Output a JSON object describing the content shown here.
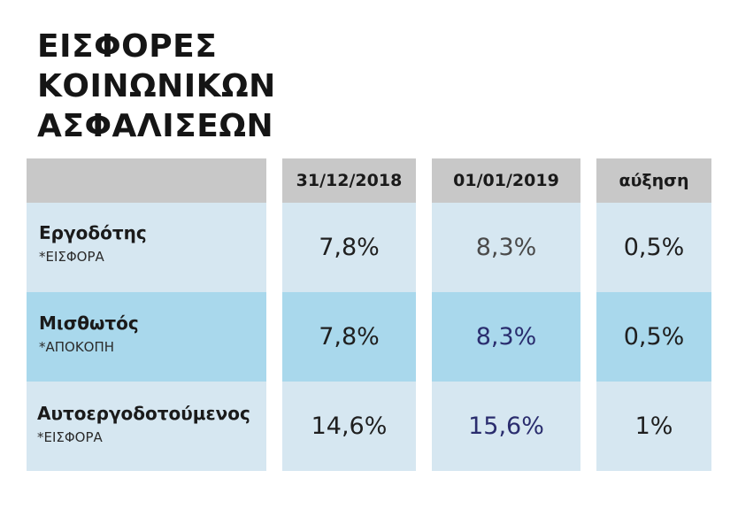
{
  "title": {
    "line1": "ΕΙΣΦΟΡΕΣ",
    "line2": "ΚΟΙΝΩΝΙΚΩΝ",
    "line3": "ΑΣΦΑΛΙΣΕΩΝ"
  },
  "table": {
    "headers": [
      "",
      "31/12/2018",
      "01/01/2019",
      "αύξηση"
    ],
    "rows": [
      {
        "name": "Εργοδότης",
        "sub": "*ΕΙΣΦΟΡΑ",
        "v2018": "7,8%",
        "v2019": "8,3%",
        "increase": "0,5%"
      },
      {
        "name": "Μισθωτός",
        "sub": "*ΑΠΟΚΟΠΗ",
        "v2018": "7,8%",
        "v2019": "8,3%",
        "increase": "0,5%"
      },
      {
        "name": "Αυτοεργοδοτούμενος",
        "sub": "*ΕΙΣΦΟΡΑ",
        "v2018": "14,6%",
        "v2019": "15,6%",
        "increase": "1%"
      }
    ]
  },
  "colors": {
    "header_bg": "#c8c8c8",
    "row_light": "#d6e7f1",
    "row_highlight": "#a9d8ec",
    "value_2019_navy": "#2a2d6e"
  }
}
